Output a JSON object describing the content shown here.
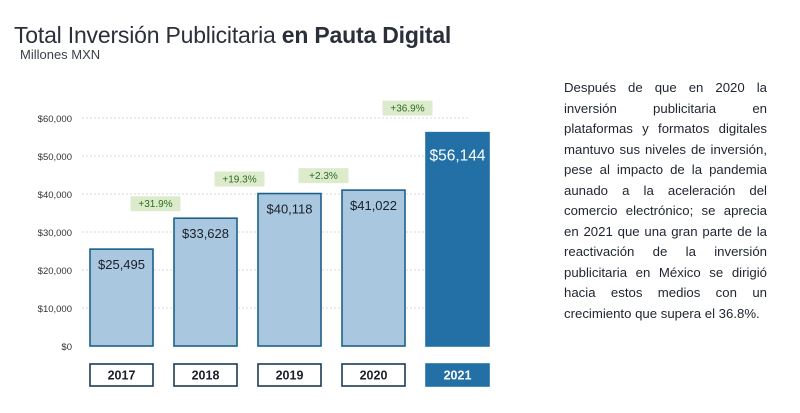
{
  "title_light": "Total Inversión Publicitaria ",
  "title_bold": "en Pauta Digital",
  "subtitle": "Millones MXN",
  "description": "Después de que en 2020 la inversión publicitaria en plataformas y formatos digitales mantuvo sus niveles de inversión, pese al impacto de la pandemia aunado a la aceleración del comercio electrónico; se aprecia en 2021 que una gran parte de la reactivación de la inversión publicitaria en México se dirigió hacia estos medios con un crecimiento que supera el 36.8%.",
  "colors": {
    "bar_light": "#a9c7de",
    "bar_light_stroke": "#1d5f8c",
    "bar_dark": "#2370a6",
    "growth_bg": "#dcebcc",
    "growth_text": "#2d6b21",
    "year_dark_bg": "#2370a6"
  },
  "chart_data": {
    "type": "bar",
    "categories": [
      "2017",
      "2018",
      "2019",
      "2020",
      "2021"
    ],
    "values": [
      25495,
      33628,
      40118,
      41022,
      56144
    ],
    "value_labels": [
      "$25,495",
      "$33,628",
      "$40,118",
      "$41,022",
      "$56,144"
    ],
    "growth_labels": [
      "+31.9%",
      "+19.3%",
      "+2.3%",
      "+36.9%"
    ],
    "growth_after_category": [
      "2017",
      "2018",
      "2019",
      "2020"
    ],
    "yticks": [
      "$0",
      "$10,000",
      "$20,000",
      "$30,000",
      "$40,000",
      "$50,000",
      "$60,000"
    ],
    "ylim": [
      0,
      60000
    ],
    "highlight": "2021",
    "title": "Total Inversión Publicitaria en Pauta Digital",
    "ylabel": "Millones MXN",
    "grid": true
  }
}
